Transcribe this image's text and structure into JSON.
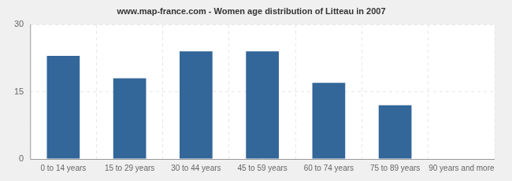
{
  "chart_data": {
    "type": "bar",
    "title": "www.map-france.com - Women age distribution of Litteau in 2007",
    "categories": [
      "0 to 14 years",
      "15 to 29 years",
      "30 to 44 years",
      "45 to 59 years",
      "60 to 74 years",
      "75 to 89 years",
      "90 years and more"
    ],
    "values": [
      23,
      18,
      24,
      24,
      17,
      12,
      0
    ],
    "color": "#336699",
    "ylim": [
      0,
      30
    ],
    "yticks": [
      0,
      15,
      30
    ],
    "grid": true
  }
}
